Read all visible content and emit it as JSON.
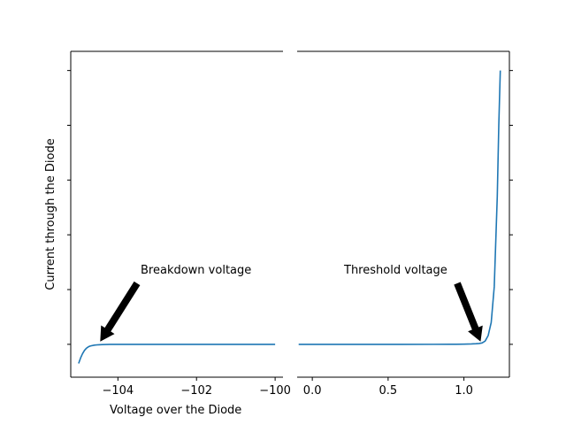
{
  "chart_data": {
    "type": "line",
    "title": "",
    "xlabel": "Voltage over the Diode",
    "ylabel": "Current through the Diode",
    "broken_x_axis": true,
    "line_color": "#1f77b4",
    "panels": [
      {
        "name": "breakdown",
        "xlim": [
          -105.2,
          -99.8
        ],
        "xticks": [
          -104,
          -102,
          -100
        ],
        "xtick_labels": [
          "−104",
          "−102",
          "−100"
        ],
        "series_x": [
          -105.0,
          -104.95,
          -104.9,
          -104.85,
          -104.8,
          -104.75,
          -104.7,
          -104.6,
          -104.5,
          -104.4,
          -104.2,
          -104.0,
          -103.5,
          -103.0,
          -102.0,
          -101.0,
          -100.0
        ],
        "series_y": [
          -0.35,
          -0.25,
          -0.17,
          -0.11,
          -0.07,
          -0.045,
          -0.03,
          -0.015,
          -0.008,
          -0.004,
          -0.001,
          0,
          0,
          0,
          0,
          0,
          0
        ]
      },
      {
        "name": "forward",
        "xlim": [
          -0.1,
          1.3
        ],
        "xticks": [
          0.0,
          0.5,
          1.0
        ],
        "xtick_labels": [
          "0.0",
          "0.5",
          "1.0"
        ],
        "series_x": [
          -0.09,
          0.0,
          0.2,
          0.4,
          0.6,
          0.8,
          0.95,
          1.0,
          1.05,
          1.08,
          1.1,
          1.12,
          1.14,
          1.16,
          1.18,
          1.2,
          1.22,
          1.23,
          1.24
        ],
        "series_y": [
          0,
          0,
          0,
          0,
          0,
          0.0002,
          0.0016,
          0.0033,
          0.0068,
          0.011,
          0.015,
          0.025,
          0.06,
          0.16,
          0.4,
          1.05,
          2.7,
          4.0,
          5.0
        ]
      }
    ],
    "ylim": [
      -0.6,
      5.35
    ],
    "yticks": [
      0,
      1,
      2,
      3,
      4,
      5
    ],
    "ytick_labels_shown": false,
    "annotations": [
      {
        "text": "Breakdown voltage",
        "panel": "breakdown",
        "target": [
          -104.45,
          0.05
        ]
      },
      {
        "text": "Threshold voltage",
        "panel": "forward",
        "target": [
          1.11,
          0.05
        ]
      }
    ]
  }
}
